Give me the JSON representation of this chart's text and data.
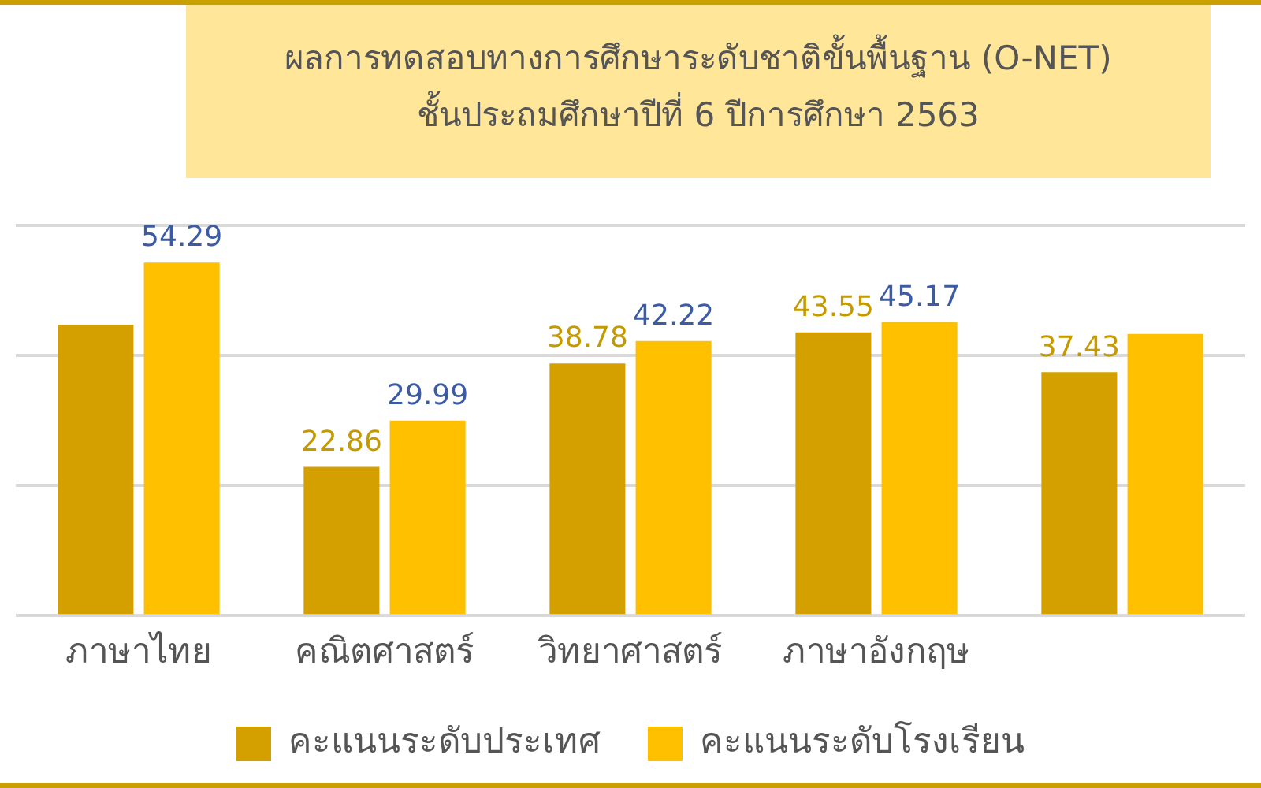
{
  "chart_data": {
    "type": "bar",
    "title": "ผลการทดสอบทางการศึกษาระดับชาติขั้นพื้นฐาน (O-NET)",
    "subtitle": "ชั้นประถมศึกษาปีที่  6 ปีการศึกษา 2563",
    "categories": [
      "ภาษาไทย",
      "คณิตศาสตร์",
      "วิทยาศาสตร์",
      "ภาษาอังกฤษ",
      null
    ],
    "series": [
      {
        "name": "คะแนนระดับประเทศ",
        "color": "#d4a000",
        "values": [
          44.7,
          22.86,
          38.78,
          43.55,
          37.43
        ],
        "value_labels": [
          null,
          "22.86",
          "38.78",
          "43.55",
          "37.43"
        ]
      },
      {
        "name": "คะแนนระดับโรงเรียน",
        "color": "#ffc000",
        "values": [
          54.29,
          29.99,
          42.22,
          45.17,
          43.3
        ],
        "value_labels": [
          "54.29",
          "29.99",
          "42.22",
          "45.17",
          null
        ]
      }
    ],
    "ylim": [
      0,
      60
    ],
    "yticks": [
      0,
      20,
      40,
      60
    ],
    "tick_labels": "x",
    "grid": "y",
    "legend": "bottom"
  }
}
